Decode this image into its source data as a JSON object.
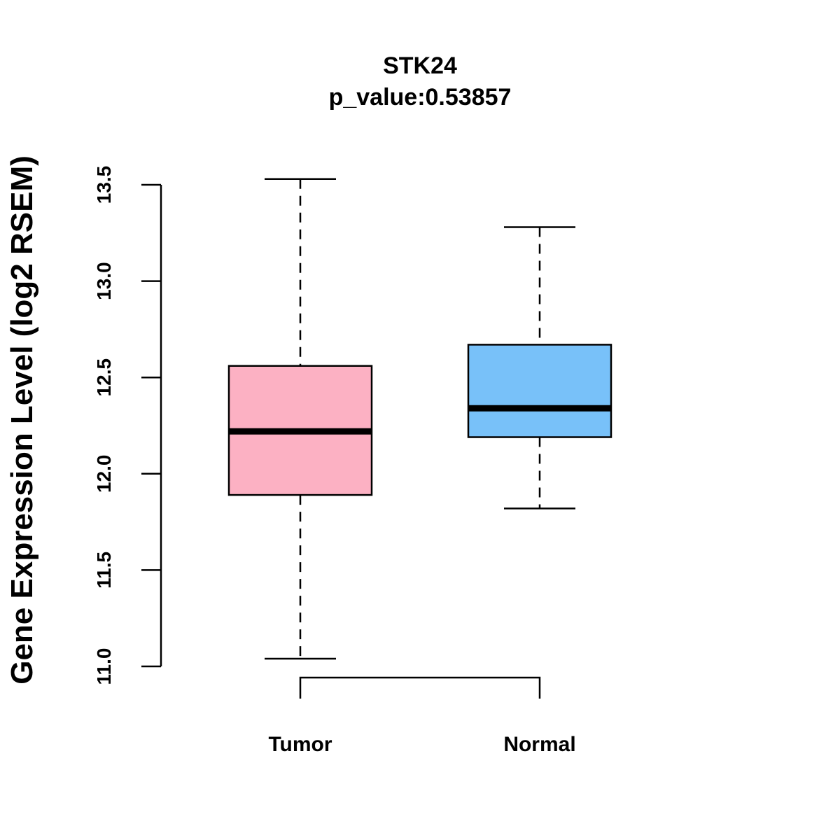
{
  "chart_data": {
    "type": "boxplot",
    "title": "STK24",
    "subtitle": "p_value:0.53857",
    "ylabel": "Gene Expression Level (log2 RSEM)",
    "xlabel": "",
    "ylim": [
      10.95,
      13.55
    ],
    "yticks": [
      11.0,
      11.5,
      12.0,
      12.5,
      13.0,
      13.5
    ],
    "ytick_labels": [
      "11.0",
      "11.5",
      "12.0",
      "12.5",
      "13.0",
      "13.5"
    ],
    "categories": [
      "Tumor",
      "Normal"
    ],
    "boxes": [
      {
        "name": "Tumor",
        "min": 11.04,
        "q1": 11.89,
        "median": 12.22,
        "q3": 12.56,
        "max": 13.53,
        "color": "#FCB1C3"
      },
      {
        "name": "Normal",
        "min": 11.82,
        "q1": 12.19,
        "median": 12.34,
        "q3": 12.67,
        "max": 13.28,
        "color": "#78C1F9"
      }
    ],
    "comparison_bracket": {
      "from": "Tumor",
      "to": "Normal"
    },
    "grid": false,
    "legend": "none"
  }
}
